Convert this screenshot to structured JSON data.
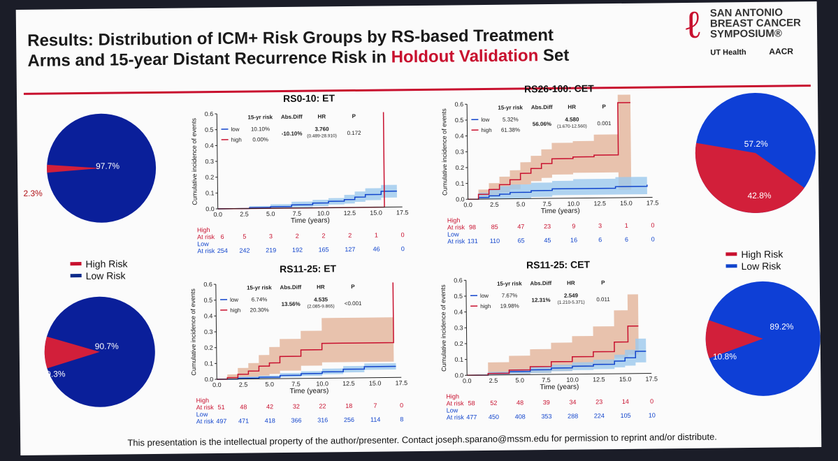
{
  "title": {
    "part1": "Results: Distribution of ICM+ Risk Groups by RS-based Treatment",
    "part2": "Arms and 15-year Distant Recurrence Risk in ",
    "highlight": "Holdout Validation",
    "part3": " Set"
  },
  "logo": {
    "org": "SAN ANTONIO BREAST CANCER SYMPOSIUM",
    "mark": "®",
    "partner1": "UT Health",
    "partner2": "AACR"
  },
  "footer": "This presentation is the intellectual property of the author/presenter. Contact joseph.sparano@mssm.edu for permission to reprint and/or distribute.",
  "colors": {
    "high": "#c8102e",
    "low": "#1144cc",
    "high_band": "#e3b49a",
    "low_band": "#9cc9ee"
  },
  "legend": {
    "high": "High Risk",
    "low": "Low Risk"
  },
  "pies": [
    {
      "id": "p1",
      "high": "2.3%",
      "low": "97.7%",
      "high_val": 2.3
    },
    {
      "id": "p2",
      "high": "42.8%",
      "low": "57.2%",
      "high_val": 42.8
    },
    {
      "id": "p3",
      "high": "9.3%",
      "low": "90.7%",
      "high_val": 9.3
    },
    {
      "id": "p4",
      "high": "10.8%",
      "low": "89.2%",
      "high_val": 10.8
    }
  ],
  "chart_data": [
    {
      "type": "line",
      "title": "RS0-10: ET",
      "ylabel": "Cumulative incidence of events",
      "xlabel": "Time (years)",
      "xlim": [
        0,
        17.5
      ],
      "ylim": [
        0,
        0.6
      ],
      "xticks": [
        "0.0",
        "2.5",
        "5.0",
        "7.5",
        "10.0",
        "12.5",
        "15.0",
        "17.5"
      ],
      "yticks": [
        "0.0",
        "0.1",
        "0.2",
        "0.3",
        "0.4",
        "0.5",
        "0.6"
      ],
      "table": {
        "headers": [
          "15-yr risk",
          "Abs.Diff",
          "HR",
          "P"
        ],
        "low": "low",
        "high": "high",
        "low_risk": "10.10%",
        "high_risk": "0.00%",
        "absdiff": "-10.10%",
        "hr": "3.760",
        "ci": "(0.489-28.910)",
        "p": "0.172"
      },
      "series": [
        {
          "name": "high",
          "x": [
            0,
            15.8,
            15.8
          ],
          "y": [
            0,
            0,
            0.6
          ]
        },
        {
          "name": "low",
          "x": [
            0,
            3,
            5,
            7,
            9,
            10.5,
            12,
            13,
            14,
            15.5,
            17
          ],
          "y": [
            0,
            0.005,
            0.01,
            0.02,
            0.03,
            0.04,
            0.05,
            0.065,
            0.08,
            0.1,
            0.1
          ]
        },
        {
          "name": "low_band_upper",
          "x": [
            0,
            3,
            5,
            7,
            9,
            10.5,
            12,
            13,
            14,
            15.5,
            17
          ],
          "y": [
            0,
            0.015,
            0.025,
            0.04,
            0.05,
            0.06,
            0.08,
            0.1,
            0.12,
            0.14,
            0.14
          ]
        },
        {
          "name": "low_band_lower",
          "x": [
            0,
            3,
            5,
            7,
            9,
            10.5,
            12,
            13,
            14,
            15.5,
            17
          ],
          "y": [
            0,
            0,
            0,
            0.005,
            0.01,
            0.02,
            0.025,
            0.035,
            0.045,
            0.06,
            0.06
          ]
        }
      ],
      "at_risk": {
        "high_label": "High",
        "at_risk": "At risk",
        "low_label": "Low",
        "high": [
          "6",
          "5",
          "3",
          "2",
          "2",
          "2",
          "1",
          "0"
        ],
        "low": [
          "254",
          "242",
          "219",
          "192",
          "165",
          "127",
          "46",
          "0"
        ]
      }
    },
    {
      "type": "line",
      "title": "RS26-100: CET",
      "ylabel": "Cumulative incidence of events",
      "xlabel": "Time (years)",
      "xlim": [
        0,
        17.5
      ],
      "ylim": [
        0,
        0.6
      ],
      "xticks": [
        "0.0",
        "2.5",
        "5.0",
        "7.5",
        "10.0",
        "12.5",
        "15.0",
        "17.5"
      ],
      "yticks": [
        "0.0",
        "0.1",
        "0.2",
        "0.3",
        "0.4",
        "0.5",
        "0.6"
      ],
      "table": {
        "headers": [
          "15-yr risk",
          "Abs.Diff",
          "HR",
          "P"
        ],
        "low": "low",
        "high": "high",
        "low_risk": "5.32%",
        "high_risk": "61.38%",
        "absdiff": "56.06%",
        "hr": "4.580",
        "ci": "(1.670-12.560)",
        "p": "0.001"
      },
      "series": [
        {
          "name": "high",
          "x": [
            0,
            1,
            2,
            3,
            4,
            5,
            6,
            7,
            8,
            10,
            12,
            14.3,
            14.3,
            15.5
          ],
          "y": [
            0,
            0.03,
            0.06,
            0.09,
            0.12,
            0.16,
            0.19,
            0.22,
            0.25,
            0.26,
            0.27,
            0.27,
            0.6,
            0.6
          ]
        },
        {
          "name": "high_band_upper",
          "x": [
            0,
            1,
            2,
            3,
            4,
            5,
            6,
            7,
            8,
            10,
            12,
            14.3,
            14.3,
            15.5
          ],
          "y": [
            0,
            0.06,
            0.1,
            0.14,
            0.18,
            0.23,
            0.27,
            0.31,
            0.35,
            0.36,
            0.4,
            0.4,
            0.65,
            0.65
          ]
        },
        {
          "name": "high_band_lower",
          "x": [
            0,
            1,
            2,
            3,
            4,
            5,
            6,
            7,
            8,
            10,
            12,
            14.3,
            14.3,
            15.5
          ],
          "y": [
            0,
            0,
            0.02,
            0.04,
            0.06,
            0.09,
            0.11,
            0.13,
            0.15,
            0.16,
            0.16,
            0.16,
            0.05,
            0.05
          ]
        },
        {
          "name": "low",
          "x": [
            0,
            1,
            2,
            3,
            4,
            6,
            8,
            10,
            14,
            17
          ],
          "y": [
            0,
            0.01,
            0.02,
            0.03,
            0.04,
            0.05,
            0.06,
            0.06,
            0.07,
            0.08
          ]
        },
        {
          "name": "low_band_upper",
          "x": [
            0,
            1,
            2,
            3,
            4,
            6,
            8,
            10,
            14,
            17
          ],
          "y": [
            0,
            0.04,
            0.06,
            0.08,
            0.09,
            0.1,
            0.11,
            0.12,
            0.13,
            0.14
          ]
        },
        {
          "name": "low_band_lower",
          "x": [
            0,
            1,
            2,
            3,
            4,
            6,
            8,
            10,
            14,
            17
          ],
          "y": [
            0,
            0,
            0,
            0,
            0,
            0.01,
            0.02,
            0.02,
            0.02,
            0.03
          ]
        }
      ],
      "at_risk": {
        "high_label": "High",
        "at_risk": "At risk",
        "low_label": "Low",
        "high": [
          "98",
          "85",
          "47",
          "23",
          "9",
          "3",
          "1",
          "0"
        ],
        "low": [
          "131",
          "110",
          "65",
          "45",
          "16",
          "6",
          "6",
          "0"
        ]
      }
    },
    {
      "type": "line",
      "title": "RS11-25: ET",
      "ylabel": "Cumulative incidence of events",
      "xlabel": "Time (years)",
      "xlim": [
        0,
        17.5
      ],
      "ylim": [
        0,
        0.6
      ],
      "xticks": [
        "0.0",
        "2.5",
        "5.0",
        "7.5",
        "10.0",
        "12.5",
        "15.0",
        "17.5"
      ],
      "yticks": [
        "0.0",
        "0.1",
        "0.2",
        "0.3",
        "0.4",
        "0.5",
        "0.6"
      ],
      "table": {
        "headers": [
          "15-yr risk",
          "Abs.Diff",
          "HR",
          "P"
        ],
        "low": "low",
        "high": "high",
        "low_risk": "6.74%",
        "high_risk": "20.30%",
        "absdiff": "13.56%",
        "hr": "4.535",
        "ci": "(2.085-9.865)",
        "p": "<0.001"
      },
      "series": [
        {
          "name": "high",
          "x": [
            0,
            1,
            2,
            3,
            4,
            5,
            6,
            8,
            10,
            12,
            16.8,
            16.8
          ],
          "y": [
            0,
            0.01,
            0.03,
            0.05,
            0.08,
            0.1,
            0.14,
            0.18,
            0.22,
            0.22,
            0.22,
            0.6
          ]
        },
        {
          "name": "high_band_upper",
          "x": [
            0,
            1,
            2,
            3,
            4,
            5,
            6,
            8,
            10,
            12,
            16.8
          ],
          "y": [
            0,
            0.03,
            0.07,
            0.1,
            0.15,
            0.2,
            0.25,
            0.3,
            0.38,
            0.38,
            0.38
          ]
        },
        {
          "name": "high_band_lower",
          "x": [
            0,
            1,
            2,
            3,
            4,
            5,
            6,
            8,
            10,
            12,
            16.8
          ],
          "y": [
            0,
            0,
            0,
            0.01,
            0.02,
            0.03,
            0.05,
            0.08,
            0.1,
            0.1,
            0.1
          ]
        },
        {
          "name": "low",
          "x": [
            0,
            2,
            4,
            6,
            8,
            10,
            12,
            14,
            17
          ],
          "y": [
            0,
            0.005,
            0.01,
            0.02,
            0.03,
            0.04,
            0.055,
            0.07,
            0.07
          ]
        },
        {
          "name": "low_band_upper",
          "x": [
            0,
            2,
            4,
            6,
            8,
            10,
            12,
            14,
            17
          ],
          "y": [
            0,
            0.015,
            0.02,
            0.035,
            0.045,
            0.06,
            0.075,
            0.09,
            0.09
          ]
        },
        {
          "name": "low_band_lower",
          "x": [
            0,
            2,
            4,
            6,
            8,
            10,
            12,
            14,
            17
          ],
          "y": [
            0,
            0,
            0,
            0.01,
            0.015,
            0.025,
            0.035,
            0.05,
            0.05
          ]
        }
      ],
      "at_risk": {
        "high_label": "High",
        "at_risk": "At risk",
        "low_label": "Low",
        "high": [
          "51",
          "48",
          "42",
          "32",
          "22",
          "18",
          "7",
          "0"
        ],
        "low": [
          "497",
          "471",
          "418",
          "366",
          "316",
          "256",
          "114",
          "8"
        ]
      }
    },
    {
      "type": "line",
      "title": "RS11-25: CET",
      "ylabel": "Cumulative incidence of events",
      "xlabel": "Time (years)",
      "xlim": [
        0,
        17.5
      ],
      "ylim": [
        0,
        0.6
      ],
      "xticks": [
        "0.0",
        "2.5",
        "5.0",
        "7.5",
        "10.0",
        "12.5",
        "15.0",
        "17.5"
      ],
      "yticks": [
        "0.0",
        "0.1",
        "0.2",
        "0.3",
        "0.4",
        "0.5",
        "0.6"
      ],
      "table": {
        "headers": [
          "15-yr risk",
          "Abs.Diff",
          "HR",
          "P"
        ],
        "low": "low",
        "high": "high",
        "low_risk": "7.67%",
        "high_risk": "19.98%",
        "absdiff": "12.31%",
        "hr": "2.549",
        "ci": "(1.210-5.371)",
        "p": "0.011"
      },
      "series": [
        {
          "name": "high",
          "x": [
            0,
            2,
            4,
            6,
            8,
            10,
            12,
            14,
            15.3,
            15.3,
            16.3
          ],
          "y": [
            0,
            0.01,
            0.03,
            0.05,
            0.08,
            0.11,
            0.14,
            0.2,
            0.2,
            0.3,
            0.3
          ]
        },
        {
          "name": "high_band_upper",
          "x": [
            0,
            2,
            4,
            6,
            8,
            10,
            12,
            14,
            15.3,
            16.3
          ],
          "y": [
            0,
            0.08,
            0.12,
            0.16,
            0.2,
            0.24,
            0.3,
            0.4,
            0.5,
            0.5
          ]
        },
        {
          "name": "high_band_lower",
          "x": [
            0,
            2,
            4,
            6,
            8,
            10,
            12,
            14,
            15.3,
            16.3
          ],
          "y": [
            0,
            0,
            0,
            0.01,
            0.02,
            0.04,
            0.06,
            0.1,
            0.12,
            0.12
          ]
        },
        {
          "name": "low",
          "x": [
            0,
            2,
            4,
            6,
            8,
            10,
            12,
            14,
            15,
            16,
            17
          ],
          "y": [
            0,
            0.01,
            0.02,
            0.03,
            0.04,
            0.05,
            0.06,
            0.08,
            0.1,
            0.14,
            0.14
          ]
        },
        {
          "name": "low_band_upper",
          "x": [
            0,
            2,
            4,
            6,
            8,
            10,
            12,
            14,
            15,
            16,
            17
          ],
          "y": [
            0,
            0.02,
            0.035,
            0.05,
            0.06,
            0.075,
            0.09,
            0.12,
            0.15,
            0.22,
            0.22
          ]
        },
        {
          "name": "low_band_lower",
          "x": [
            0,
            2,
            4,
            6,
            8,
            10,
            12,
            14,
            15,
            16,
            17
          ],
          "y": [
            0,
            0,
            0.005,
            0.01,
            0.02,
            0.025,
            0.03,
            0.04,
            0.05,
            0.07,
            0.07
          ]
        }
      ],
      "at_risk": {
        "high_label": "High",
        "at_risk": "At risk",
        "low_label": "Low",
        "high": [
          "58",
          "52",
          "48",
          "39",
          "34",
          "23",
          "14",
          "0"
        ],
        "low": [
          "477",
          "450",
          "408",
          "353",
          "288",
          "224",
          "105",
          "10"
        ]
      }
    }
  ]
}
